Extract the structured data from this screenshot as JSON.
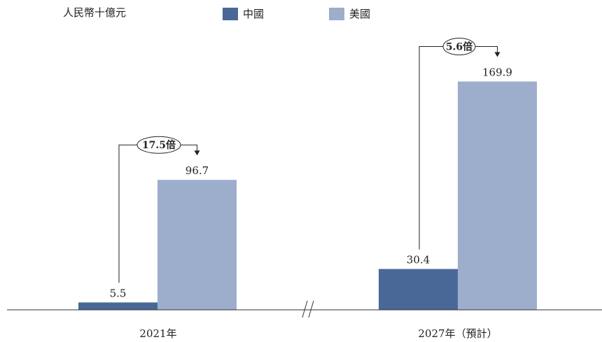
{
  "chart_data": {
    "type": "bar",
    "unit_label": "人民幣十億元",
    "categories": [
      "2021年",
      "2027年（預計）"
    ],
    "series": [
      {
        "name": "中國",
        "values": [
          5.5,
          30.4
        ],
        "color": "#4a6897"
      },
      {
        "name": "美國",
        "values": [
          96.7,
          169.9
        ],
        "color": "#9dadcc"
      }
    ],
    "value_labels": [
      [
        "5.5",
        "30.4"
      ],
      [
        "96.7",
        "169.9"
      ]
    ],
    "multiples": [
      "17.5倍",
      "5.6倍"
    ],
    "ylim": [
      0,
      190
    ],
    "axis_break": true,
    "legend_position": "top",
    "grid": false
  }
}
